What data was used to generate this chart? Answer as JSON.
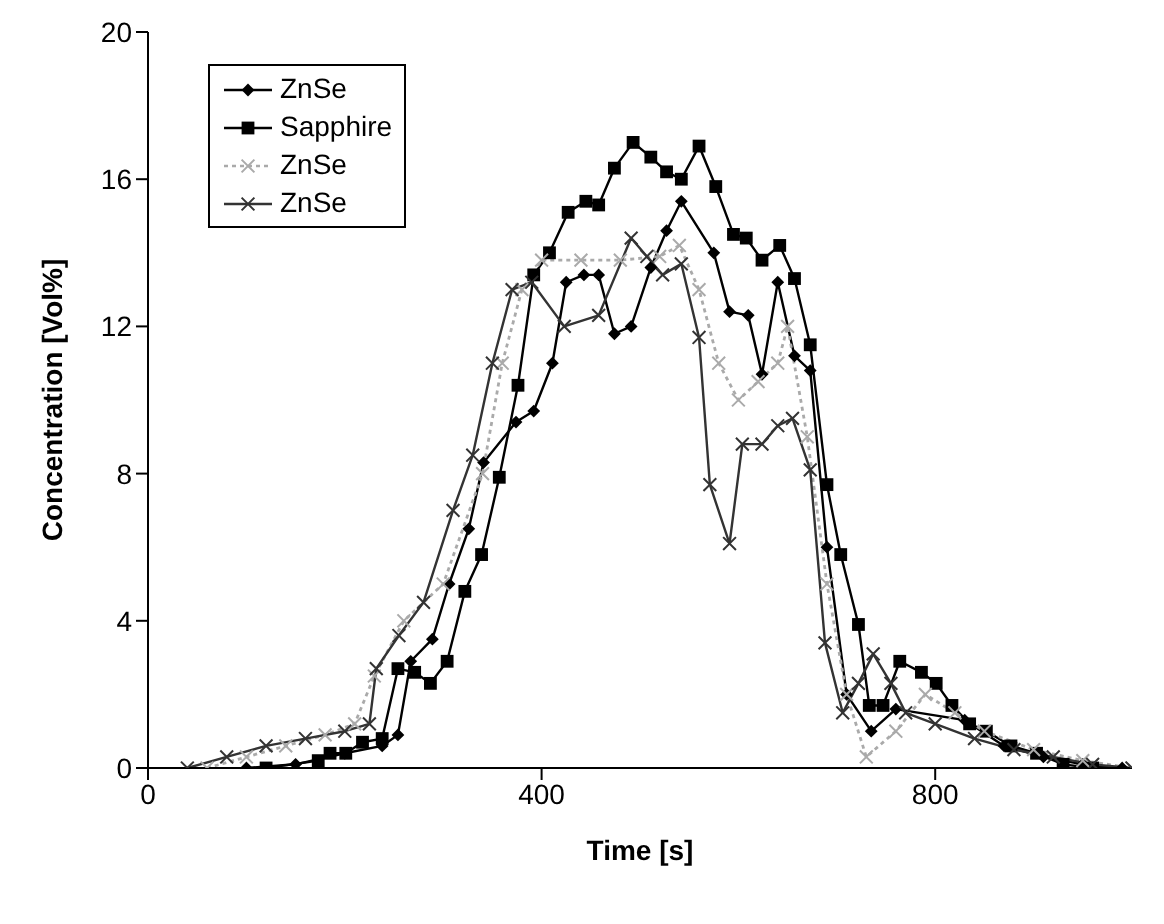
{
  "chart_data": {
    "type": "line",
    "xlabel": "Time [s]",
    "ylabel": "Concentration [Vol%]",
    "xlim": [
      0,
      1000
    ],
    "xticks": [
      0,
      400,
      800
    ],
    "ylim": [
      0,
      20
    ],
    "yticks": [
      0,
      4,
      8,
      12,
      16,
      20
    ],
    "grid": false,
    "legend": "top left",
    "series": [
      {
        "name": "ZnSe",
        "color": "#000000",
        "marker": "diamond",
        "line_style": "solid",
        "x": [
          100,
          150,
          200,
          238,
          254,
          267,
          289,
          306,
          326,
          341,
          374,
          392,
          411,
          425,
          443,
          458,
          474,
          491,
          511,
          527,
          542,
          575,
          591,
          610,
          624,
          640,
          657,
          673,
          690,
          710,
          735,
          760,
          830,
          870,
          910,
          950,
          990
        ],
        "values": [
          0,
          0.1,
          0.4,
          0.6,
          0.9,
          2.9,
          3.5,
          5.0,
          6.5,
          8.3,
          9.4,
          9.7,
          11,
          13.2,
          13.4,
          13.4,
          11.8,
          12,
          13.6,
          14.6,
          15.4,
          14,
          12.4,
          12.3,
          10.7,
          13.2,
          11.2,
          10.8,
          6,
          2,
          1,
          1.6,
          1.3,
          0.6,
          0.3,
          0.1,
          0
        ]
      },
      {
        "name": "Sapphire",
        "color": "#000000",
        "marker": "square",
        "line_style": "solid",
        "x": [
          120,
          173,
          185,
          201,
          218,
          238,
          254,
          271,
          287,
          304,
          322,
          339,
          357,
          376,
          392,
          408,
          427,
          445,
          458,
          474,
          493,
          511,
          527,
          542,
          560,
          577,
          595,
          608,
          624,
          642,
          657,
          673,
          690,
          704,
          722,
          733,
          747,
          764,
          786,
          801,
          817,
          835,
          852,
          877,
          903,
          930,
          960
        ],
        "values": [
          0,
          0.2,
          0.4,
          0.4,
          0.7,
          0.8,
          2.7,
          2.6,
          2.3,
          2.9,
          4.8,
          5.8,
          7.9,
          10.4,
          13.4,
          14,
          15.1,
          15.4,
          15.3,
          16.3,
          17,
          16.6,
          16.2,
          16,
          16.9,
          15.8,
          14.5,
          14.4,
          13.8,
          14.2,
          13.3,
          11.5,
          7.7,
          5.8,
          3.9,
          1.7,
          1.7,
          2.9,
          2.6,
          2.3,
          1.7,
          1.2,
          1,
          0.6,
          0.4,
          0.1,
          0
        ]
      },
      {
        "name": "ZnSe",
        "color": "#aaaaaa",
        "marker": "cross",
        "line_style": "dotted",
        "x": [
          60,
          100,
          140,
          180,
          210,
          230,
          260,
          300,
          340,
          360,
          380,
          400,
          440,
          480,
          520,
          540,
          560,
          580,
          600,
          620,
          640,
          650,
          670,
          690,
          710,
          730,
          760,
          790,
          820,
          850,
          900,
          950,
          1000
        ],
        "values": [
          0,
          0.3,
          0.6,
          0.9,
          1.2,
          2.5,
          4,
          5,
          8,
          11,
          13,
          13.8,
          13.8,
          13.8,
          13.9,
          14.2,
          13,
          11,
          10,
          10.5,
          11,
          12,
          9,
          5,
          2,
          0.3,
          1,
          2,
          1.5,
          1,
          0.5,
          0.2,
          0
        ]
      },
      {
        "name": "ZnSe",
        "color": "#333333",
        "marker": "cross",
        "line_style": "solid",
        "x": [
          40,
          80,
          120,
          160,
          200,
          225,
          232,
          255,
          280,
          310,
          330,
          350,
          370,
          390,
          423,
          458,
          491,
          507,
          523,
          542,
          560,
          571,
          591,
          604,
          624,
          640,
          655,
          673,
          688,
          706,
          722,
          737,
          755,
          770,
          800,
          840,
          880,
          920,
          960,
          1000
        ],
        "values": [
          0,
          0.3,
          0.6,
          0.8,
          1,
          1.2,
          2.7,
          3.6,
          4.5,
          7,
          8.5,
          11,
          13,
          13.2,
          12,
          12.3,
          14.4,
          13.9,
          13.4,
          13.7,
          11.7,
          7.7,
          6.1,
          8.8,
          8.8,
          9.3,
          9.5,
          8.1,
          3.4,
          1.5,
          2.3,
          3.1,
          2.3,
          1.5,
          1.2,
          0.8,
          0.5,
          0.3,
          0.1,
          0
        ]
      }
    ]
  }
}
